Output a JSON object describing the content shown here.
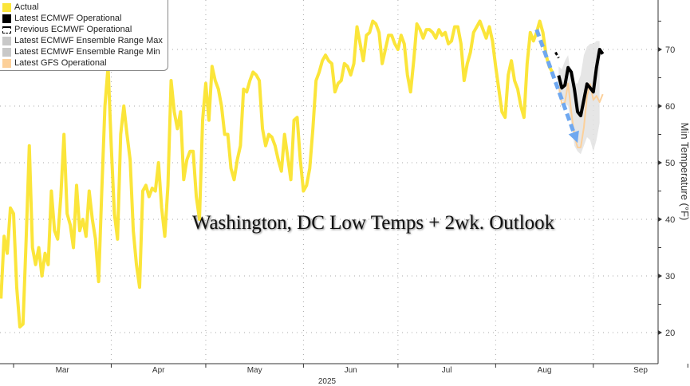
{
  "chart_data": {
    "type": "line",
    "title": "Washington, DC Low Temps + 2wk. Outlook",
    "xlabel": "2025",
    "ylabel": "Min Temperature (°F)",
    "ylim": [
      17,
      80
    ],
    "yticks": [
      20,
      30,
      40,
      50,
      60,
      70
    ],
    "month_labels": [
      "Mar",
      "Apr",
      "May",
      "Jun",
      "Jul",
      "Aug",
      "Sep"
    ],
    "year_label": "2025",
    "x_units": "day of year 2025",
    "legend": [
      {
        "name": "Actual",
        "color": "#fbe53a"
      },
      {
        "name": "Latest ECMWF Operational",
        "color": "#000000"
      },
      {
        "name": "Previous ECMWF Operational",
        "color": "#000000"
      },
      {
        "name": "Latest ECMWF Ensemble Range Max",
        "color": "#c8c8c8"
      },
      {
        "name": "Latest ECMWF Ensemble Range Min",
        "color": "#c8c8c8"
      },
      {
        "name": "Latest GFS Operational",
        "color": "#fcd09a"
      }
    ],
    "legend_position": "top-left",
    "grid": true,
    "series": [
      {
        "name": "Actual",
        "start_day": 56,
        "values": [
          26,
          37,
          34,
          42,
          41,
          28,
          21,
          21.5,
          36.5,
          53,
          35,
          32,
          35,
          30,
          34,
          32,
          45,
          38,
          36.5,
          44,
          55,
          41,
          39,
          35,
          46,
          38,
          40,
          37,
          45,
          40,
          36.5,
          29,
          45,
          60,
          67,
          53,
          41,
          36.5,
          55,
          60,
          55,
          50.5,
          38,
          32,
          28,
          45,
          46,
          44,
          45.5,
          45,
          50,
          42,
          37,
          46,
          64.5,
          59,
          56,
          59,
          47,
          50.5,
          52,
          52,
          44,
          40,
          57.5,
          64,
          57.5,
          67,
          64.5,
          63,
          60,
          55,
          55,
          49,
          47,
          50.5,
          53,
          63,
          62.5,
          64.5,
          66,
          65.5,
          64.5,
          56,
          53,
          55,
          54.5,
          53,
          50.5,
          48.5,
          55,
          51,
          47,
          57.5,
          58,
          50.5,
          45,
          46,
          49,
          56,
          64.5,
          66,
          68,
          69,
          68,
          67.5,
          62.5,
          64,
          64.5,
          67.5,
          67,
          65.5,
          67.5,
          74,
          71,
          68,
          72.5,
          73,
          75,
          74.5,
          73,
          67.5,
          70,
          72.5,
          72.5,
          71,
          70,
          72.5,
          71,
          65.5,
          62.5,
          68,
          74.5,
          73.5,
          72,
          73.5,
          73.5,
          73,
          72,
          73.5,
          72.5,
          73,
          71,
          71.5,
          74,
          74,
          71,
          64.5,
          67.5,
          69.5,
          73,
          74,
          75,
          73.5,
          72,
          74,
          71.5,
          67,
          63,
          59,
          58,
          65.5,
          68,
          64.5,
          63,
          60,
          58,
          67.5,
          73,
          71.5,
          73,
          75,
          73,
          69,
          67,
          66
        ]
      },
      {
        "name": "Previous ECMWF Operational",
        "start_day": 232,
        "values": [
          69.5,
          68.5
        ]
      },
      {
        "name": "Latest ECMWF Operational",
        "start_day": 233,
        "values": [
          65.4,
          63.2,
          63.7,
          66.8,
          66,
          63,
          59,
          58.3,
          61.1,
          63.9,
          63.2,
          62.5,
          66.8,
          70,
          69.2
        ]
      },
      {
        "name": "Latest GFS Operational",
        "start_day": 233,
        "values": [
          63.7,
          60.4,
          60.7,
          64,
          59,
          54.8,
          52.7,
          52.7,
          56.2,
          61.8,
          63.9,
          61.1,
          61.8,
          60.7,
          62.1
        ]
      },
      {
        "name": "Latest ECMWF Ensemble Range Max",
        "start_day": 233,
        "values": [
          67,
          66.5,
          68,
          69,
          65,
          64,
          64,
          65.5,
          69,
          70.5,
          71,
          71,
          71.5,
          71.5
        ]
      },
      {
        "name": "Latest ECMWF Ensemble Range Min",
        "start_day": 233,
        "values": [
          62,
          61,
          60.5,
          60,
          57,
          53,
          52,
          51.5,
          53,
          54.5,
          54,
          52,
          54,
          57
        ]
      }
    ],
    "annotation": {
      "type": "arrow",
      "from": {
        "day": 226,
        "value": 73.5
      },
      "to": {
        "day": 239,
        "value": 53.5
      },
      "color": "#6fa8f0"
    }
  }
}
